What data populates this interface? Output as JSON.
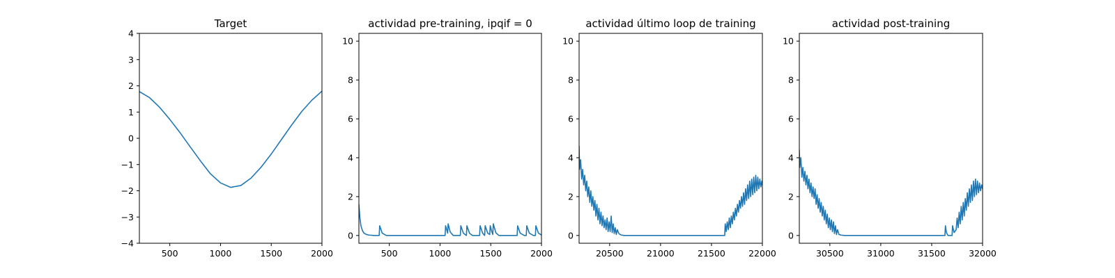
{
  "colors": {
    "series": "#1f77b4",
    "axes": "#000000",
    "background": "#ffffff"
  },
  "chart_data": [
    {
      "type": "line",
      "title": "Target",
      "xlabel": "",
      "ylabel": "",
      "xlim": [
        200,
        2000
      ],
      "ylim": [
        -4,
        4
      ],
      "xticks": [
        500,
        1000,
        1500,
        2000
      ],
      "yticks": [
        -4,
        -3,
        -2,
        -1,
        0,
        1,
        2,
        3,
        4
      ],
      "grid": false,
      "legend": "none",
      "series": [
        {
          "x": [
            200,
            300,
            400,
            500,
            600,
            700,
            800,
            900,
            1000,
            1100,
            1200,
            1300,
            1400,
            1500,
            1600,
            1700,
            1800,
            1900,
            2000
          ],
          "y": [
            1.78,
            1.55,
            1.18,
            0.72,
            0.22,
            -0.32,
            -0.85,
            -1.35,
            -1.7,
            -1.87,
            -1.8,
            -1.52,
            -1.1,
            -0.6,
            -0.05,
            0.5,
            1.02,
            1.45,
            1.8
          ]
        }
      ]
    },
    {
      "type": "line",
      "title": "actividad pre-training, ipqif = 0",
      "xlabel": "",
      "ylabel": "",
      "xlim": [
        200,
        2000
      ],
      "ylim": [
        -0.4,
        10.4
      ],
      "xticks": [
        500,
        1000,
        1500,
        2000
      ],
      "yticks": [
        0,
        2,
        4,
        6,
        8,
        10
      ],
      "grid": false,
      "legend": "none",
      "series": [
        {
          "x": [
            200,
            210,
            220,
            235,
            250,
            275,
            300,
            350,
            400,
            405,
            430,
            470,
            1050,
            1055,
            1075,
            1080,
            1100,
            1130,
            1200,
            1205,
            1230,
            1260,
            1265,
            1290,
            1320,
            1390,
            1395,
            1420,
            1440,
            1445,
            1470,
            1490,
            1495,
            1510,
            1520,
            1525,
            1550,
            1580,
            1760,
            1765,
            1790,
            1830,
            1850,
            1855,
            1880,
            1920,
            1940,
            1945,
            1970,
            2000
          ],
          "y": [
            1.6,
            0.9,
            0.5,
            0.25,
            0.12,
            0.05,
            0.02,
            0.0,
            0.0,
            0.5,
            0.12,
            0.0,
            0.0,
            0.5,
            0.12,
            0.6,
            0.18,
            0.0,
            0.0,
            0.5,
            0.12,
            0.0,
            0.5,
            0.12,
            0.0,
            0.0,
            0.5,
            0.12,
            0.0,
            0.5,
            0.12,
            0.05,
            0.5,
            0.2,
            0.05,
            0.6,
            0.14,
            0.0,
            0.0,
            0.5,
            0.12,
            0.0,
            0.0,
            0.5,
            0.12,
            0.0,
            0.0,
            0.5,
            0.12,
            0.02
          ]
        }
      ]
    },
    {
      "type": "line",
      "title": "actividad último loop de training",
      "xlabel": "",
      "ylabel": "",
      "xlim": [
        20200,
        22000
      ],
      "ylim": [
        -0.4,
        10.4
      ],
      "xticks": [
        20500,
        21000,
        21500,
        22000
      ],
      "yticks": [
        0,
        2,
        4,
        6,
        8,
        10
      ],
      "grid": false,
      "legend": "none",
      "series": [
        {
          "x": [
            20200,
            20205,
            20215,
            20225,
            20235,
            20245,
            20255,
            20265,
            20275,
            20285,
            20295,
            20305,
            20315,
            20325,
            20335,
            20345,
            20355,
            20365,
            20375,
            20385,
            20395,
            20405,
            20415,
            20425,
            20435,
            20445,
            20455,
            20465,
            20475,
            20485,
            20495,
            20505,
            20515,
            20525,
            20535,
            20545,
            20555,
            20565,
            20575,
            20590,
            20610,
            20640,
            20700,
            21000,
            21300,
            21600,
            21630,
            21635,
            21645,
            21655,
            21665,
            21675,
            21685,
            21695,
            21705,
            21715,
            21725,
            21735,
            21745,
            21755,
            21765,
            21775,
            21785,
            21795,
            21805,
            21815,
            21825,
            21835,
            21845,
            21855,
            21865,
            21875,
            21885,
            21895,
            21905,
            21915,
            21925,
            21935,
            21945,
            21955,
            21965,
            21975,
            21985,
            21995,
            22000
          ],
          "y": [
            4.6,
            3.4,
            3.9,
            2.9,
            3.4,
            2.6,
            3.1,
            2.3,
            2.8,
            2.0,
            2.5,
            1.7,
            2.3,
            1.5,
            2.0,
            1.3,
            1.8,
            1.0,
            1.6,
            0.8,
            1.4,
            0.6,
            1.2,
            0.5,
            1.0,
            0.4,
            0.8,
            0.3,
            0.9,
            0.2,
            0.7,
            0.2,
            1.0,
            0.15,
            0.6,
            0.1,
            0.4,
            0.05,
            0.3,
            0.1,
            0.03,
            0.0,
            0.0,
            0.0,
            0.0,
            0.0,
            0.0,
            0.6,
            0.2,
            0.7,
            0.3,
            0.9,
            0.4,
            1.0,
            0.6,
            1.2,
            0.8,
            1.4,
            1.0,
            1.6,
            1.2,
            1.8,
            1.4,
            2.0,
            1.5,
            2.2,
            1.6,
            2.4,
            1.8,
            2.6,
            1.9,
            2.8,
            2.0,
            2.9,
            2.1,
            3.0,
            2.2,
            3.1,
            2.3,
            3.0,
            2.4,
            2.9,
            2.5,
            2.8,
            2.6
          ]
        }
      ]
    },
    {
      "type": "line",
      "title": "actividad post-training",
      "xlabel": "",
      "ylabel": "",
      "xlim": [
        30200,
        32000
      ],
      "ylim": [
        -0.4,
        10.4
      ],
      "xticks": [
        30500,
        31000,
        31500,
        32000
      ],
      "yticks": [
        0,
        2,
        4,
        6,
        8,
        10
      ],
      "grid": false,
      "legend": "none",
      "series": [
        {
          "x": [
            30200,
            30205,
            30215,
            30225,
            30235,
            30245,
            30255,
            30265,
            30275,
            30285,
            30295,
            30305,
            30315,
            30325,
            30335,
            30345,
            30355,
            30365,
            30375,
            30385,
            30395,
            30405,
            30415,
            30425,
            30435,
            30445,
            30455,
            30465,
            30475,
            30485,
            30495,
            30505,
            30515,
            30525,
            30535,
            30545,
            30555,
            30565,
            30575,
            30590,
            30610,
            30640,
            30700,
            31000,
            31300,
            31630,
            31635,
            31645,
            31660,
            31700,
            31705,
            31720,
            31740,
            31750,
            31760,
            31770,
            31780,
            31790,
            31800,
            31810,
            31820,
            31830,
            31840,
            31850,
            31860,
            31870,
            31880,
            31890,
            31900,
            31910,
            31920,
            31930,
            31940,
            31950,
            31960,
            31970,
            31980,
            31990,
            32000
          ],
          "y": [
            4.4,
            3.5,
            4.0,
            3.0,
            3.5,
            2.8,
            3.3,
            2.6,
            3.1,
            2.4,
            2.9,
            2.2,
            2.7,
            2.0,
            2.5,
            1.9,
            2.4,
            1.6,
            2.1,
            1.4,
            1.9,
            1.2,
            1.7,
            1.0,
            1.5,
            0.8,
            1.3,
            0.6,
            1.1,
            0.4,
            0.9,
            0.3,
            0.8,
            0.2,
            0.7,
            0.1,
            0.5,
            0.05,
            0.3,
            0.05,
            0.02,
            0.0,
            0.0,
            0.0,
            0.0,
            0.0,
            0.5,
            0.15,
            0.0,
            0.0,
            0.5,
            0.15,
            0.3,
            0.9,
            0.4,
            1.2,
            0.6,
            1.5,
            0.8,
            1.7,
            1.0,
            1.9,
            1.3,
            2.2,
            1.5,
            2.4,
            1.7,
            2.6,
            1.8,
            2.8,
            2.0,
            2.9,
            2.1,
            2.8,
            2.2,
            2.7,
            2.3,
            2.6,
            2.4
          ]
        }
      ]
    }
  ]
}
